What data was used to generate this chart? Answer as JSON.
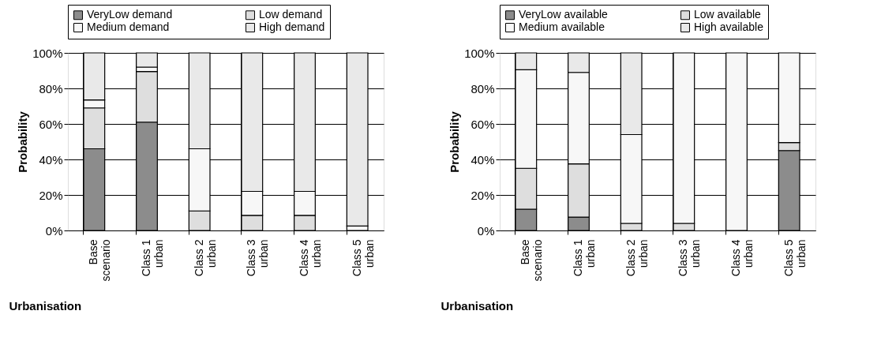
{
  "chart_data": [
    {
      "type": "bar",
      "stacked": true,
      "xlabel": "Urbanisation",
      "ylabel": "Probability",
      "categories": [
        "Base\nscenario",
        "Class 1\nurban",
        "Class 2\nurban",
        "Class 3\nurban",
        "Class 4\nurban",
        "Class 5\nurban"
      ],
      "series": [
        {
          "name": "VeryLow demand",
          "color": "#8c8c8c",
          "values": [
            46,
            61,
            0,
            0,
            0,
            0
          ]
        },
        {
          "name": "Low demand",
          "color": "#dedede",
          "values": [
            23,
            28.5,
            11,
            8.5,
            8.5,
            0
          ]
        },
        {
          "name": "Medium demand",
          "color": "#f7f7f7",
          "values": [
            4.5,
            2.5,
            35,
            13.5,
            13.5,
            2.5
          ]
        },
        {
          "name": "High demand",
          "color": "#e9e9e9",
          "values": [
            26.5,
            8,
            54,
            78,
            78,
            97.5
          ]
        }
      ],
      "ylim": [
        0,
        100
      ],
      "yticks": [
        {
          "value": 0,
          "label": "0%"
        },
        {
          "value": 20,
          "label": "20%"
        },
        {
          "value": 40,
          "label": "40%"
        },
        {
          "value": 60,
          "label": "60%"
        },
        {
          "value": 80,
          "label": "80%"
        },
        {
          "value": 100,
          "label": "100%"
        }
      ],
      "grid": true,
      "legend": "top"
    },
    {
      "type": "bar",
      "stacked": true,
      "xlabel": "Urbanisation",
      "ylabel": "Probability",
      "categories": [
        "Base\nscenario",
        "Class 1\nurban",
        "Class 2\nurban",
        "Class 3\nurban",
        "Class 4\nurban",
        "Class 5\nurban"
      ],
      "series": [
        {
          "name": "VeryLow available",
          "color": "#8c8c8c",
          "values": [
            12,
            7.5,
            0,
            0,
            0,
            45
          ]
        },
        {
          "name": "Low available",
          "color": "#dedede",
          "values": [
            23,
            30,
            4,
            4,
            0,
            4.5
          ]
        },
        {
          "name": "Medium available",
          "color": "#f7f7f7",
          "values": [
            55.5,
            51.5,
            50,
            96,
            100,
            50.5
          ]
        },
        {
          "name": "High available",
          "color": "#e9e9e9",
          "values": [
            9.5,
            11,
            46,
            0,
            0,
            0
          ]
        }
      ],
      "ylim": [
        0,
        100
      ],
      "yticks": [
        {
          "value": 0,
          "label": "0%"
        },
        {
          "value": 20,
          "label": "20%"
        },
        {
          "value": 40,
          "label": "40%"
        },
        {
          "value": 60,
          "label": "60%"
        },
        {
          "value": 80,
          "label": "80%"
        },
        {
          "value": 100,
          "label": "100%"
        }
      ],
      "grid": true,
      "legend": "top"
    }
  ]
}
